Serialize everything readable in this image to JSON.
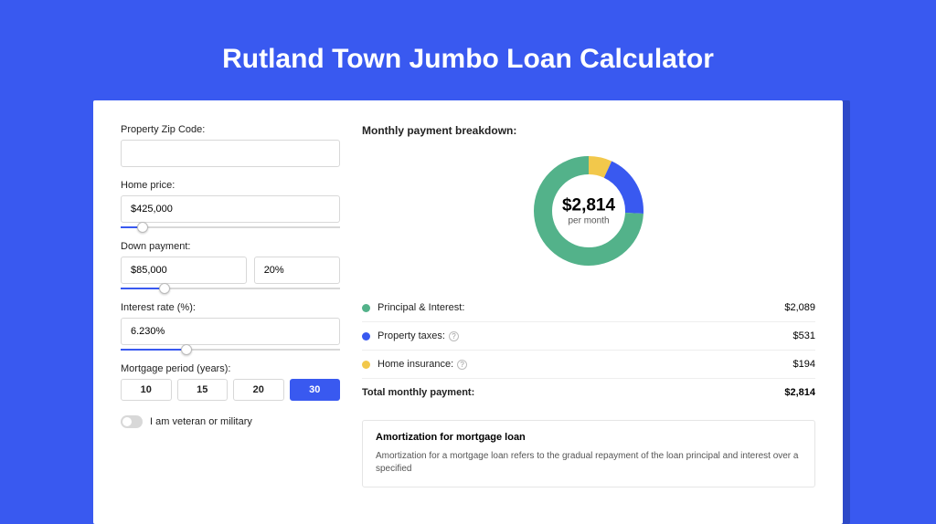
{
  "title": "Rutland Town Jumbo Loan Calculator",
  "colors": {
    "bg": "#3959f0",
    "principal": "#53b28a",
    "taxes": "#3959f0",
    "insurance": "#f2c84b"
  },
  "form": {
    "zip": {
      "label": "Property Zip Code:",
      "value": ""
    },
    "home_price": {
      "label": "Home price:",
      "value": "$425,000",
      "slider_pct": 10
    },
    "down_payment": {
      "label": "Down payment:",
      "amount": "$85,000",
      "pct": "20%",
      "slider_pct": 20
    },
    "interest": {
      "label": "Interest rate (%):",
      "value": "6.230%",
      "slider_pct": 30
    },
    "period": {
      "label": "Mortgage period (years):",
      "options": [
        "10",
        "15",
        "20",
        "30"
      ],
      "active": "30"
    },
    "veteran": {
      "label": "I am veteran or military",
      "value": false
    }
  },
  "breakdown": {
    "title": "Monthly payment breakdown:",
    "donut": {
      "amount": "$2,814",
      "sub": "per month",
      "slices": [
        {
          "color": "#53b28a",
          "value": 2089
        },
        {
          "color": "#3959f0",
          "value": 531
        },
        {
          "color": "#f2c84b",
          "value": 194
        }
      ],
      "radius": 60,
      "thickness": 20
    },
    "rows": [
      {
        "color": "#53b28a",
        "label": "Principal & Interest:",
        "info": false,
        "value": "$2,089"
      },
      {
        "color": "#3959f0",
        "label": "Property taxes:",
        "info": true,
        "value": "$531"
      },
      {
        "color": "#f2c84b",
        "label": "Home insurance:",
        "info": true,
        "value": "$194"
      }
    ],
    "total": {
      "label": "Total monthly payment:",
      "value": "$2,814"
    }
  },
  "amort": {
    "title": "Amortization for mortgage loan",
    "body": "Amortization for a mortgage loan refers to the gradual repayment of the loan principal and interest over a specified"
  }
}
